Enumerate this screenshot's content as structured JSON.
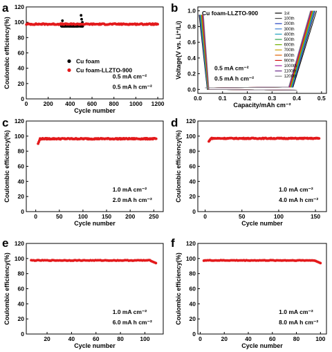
{
  "chart_data": [
    {
      "panel": "a",
      "type": "scatter",
      "xlabel": "Cycle number",
      "ylabel": "Coulombic efficiency(%)",
      "xlim": [
        0,
        1250
      ],
      "ylim": [
        0,
        120
      ],
      "xticks": [
        "0",
        "200",
        "400",
        "600",
        "800",
        "1000",
        "1200"
      ],
      "yticks": [
        "0",
        "20",
        "40",
        "60",
        "80",
        "100",
        "120"
      ],
      "legend_position": "bottom-right",
      "annotations": [
        "0.5 mA cm⁻²",
        "0.5 mA h cm⁻²"
      ],
      "series": [
        {
          "name": "Cu foam",
          "color": "#000000",
          "x_range": [
            320,
            515
          ],
          "mean": 95,
          "spikes": [
            [
              330,
              102
            ],
            [
              500,
              109
            ],
            [
              505,
              104
            ],
            [
              512,
              100
            ]
          ]
        },
        {
          "name": "Cu foam-LLZTO-900",
          "color": "#e31a1c",
          "x_range": [
            1,
            1200
          ],
          "mean": 97.5,
          "spread": 1.5
        }
      ]
    },
    {
      "panel": "b",
      "type": "line",
      "title": "Cu foam-LLZTO-900",
      "xlabel": "Capacity/mAh cm⁻²",
      "ylabel": "Voltage(V vs. Li⁺/Li)",
      "xlim": [
        0,
        0.52
      ],
      "ylim": [
        -0.05,
        1.05
      ],
      "xticks": [
        "0.0",
        "0.1",
        "0.2",
        "0.3",
        "0.4",
        "0.5"
      ],
      "yticks": [
        "0.0",
        "0.2",
        "0.4",
        "0.6",
        "0.8",
        "1.0"
      ],
      "legend_position": "top-right",
      "annotations": [
        "0.5 mA cm⁻²",
        "0.5 mA h cm⁻²"
      ],
      "series": [
        {
          "name": "1st",
          "color": "#000000",
          "charge_end": 0.48
        },
        {
          "name": "100th",
          "color": "#444444",
          "charge_end": 0.475
        },
        {
          "name": "200th",
          "color": "#1f3fbf",
          "charge_end": 0.472
        },
        {
          "name": "300th",
          "color": "#3a7fd0",
          "charge_end": 0.47
        },
        {
          "name": "400th",
          "color": "#20a0c0",
          "charge_end": 0.468
        },
        {
          "name": "500th",
          "color": "#2aa04a",
          "charge_end": 0.466
        },
        {
          "name": "600th",
          "color": "#70b000",
          "charge_end": 0.465
        },
        {
          "name": "700th",
          "color": "#c8a000",
          "charge_end": 0.463
        },
        {
          "name": "800th",
          "color": "#e06000",
          "charge_end": 0.462
        },
        {
          "name": "900th",
          "color": "#d01010",
          "charge_end": 0.46
        },
        {
          "name": "1000th",
          "color": "#a020a0",
          "charge_end": 0.458
        },
        {
          "name": "1100th",
          "color": "#6a2a8a",
          "charge_end": 0.456
        },
        {
          "name": "1200th",
          "color": "#888888",
          "charge_end": 0.455
        }
      ]
    },
    {
      "panel": "c",
      "type": "scatter",
      "xlabel": "Cycle number",
      "ylabel": "Coulombic efficiency(%)",
      "xlim": [
        -20,
        270
      ],
      "ylim": [
        0,
        120
      ],
      "xticks": [
        "0",
        "50",
        "100",
        "150",
        "200",
        "250"
      ],
      "yticks": [
        "0",
        "20",
        "40",
        "60",
        "80",
        "100",
        "120"
      ],
      "annotations": [
        "1.0 mA cm⁻²",
        "2.0 mA h cm⁻²"
      ],
      "series": [
        {
          "color": "#e31a1c",
          "x_range": [
            5,
            255
          ],
          "mean": 96.5,
          "spread": 1.5,
          "start_value": 90
        }
      ]
    },
    {
      "panel": "d",
      "type": "scatter",
      "xlabel": "Cycle number",
      "ylabel": "Coulombic efficiency(%)",
      "xlim": [
        -10,
        165
      ],
      "ylim": [
        0,
        120
      ],
      "xticks": [
        "0",
        "50",
        "100",
        "150"
      ],
      "yticks": [
        "0",
        "20",
        "40",
        "60",
        "80",
        "100",
        "120"
      ],
      "annotations": [
        "1.0 mA cm⁻²",
        "4.0 mA h cm⁻²"
      ],
      "series": [
        {
          "color": "#e31a1c",
          "x_range": [
            5,
            155
          ],
          "mean": 97,
          "spread": 1.2,
          "start_value": 93
        }
      ]
    },
    {
      "panel": "e",
      "type": "scatter",
      "xlabel": "Cycle number",
      "ylabel": "Coulombic efficiency(%)",
      "xlim": [
        3,
        115
      ],
      "ylim": [
        0,
        120
      ],
      "xticks": [
        "20",
        "40",
        "60",
        "80",
        "100"
      ],
      "yticks": [
        "0",
        "20",
        "40",
        "60",
        "80",
        "100",
        "120"
      ],
      "annotations": [
        "1.0 mA cm⁻²",
        "6.0 mA h cm⁻²"
      ],
      "series": [
        {
          "color": "#e31a1c",
          "x_range": [
            7,
            109
          ],
          "mean": 97.5,
          "spread": 0.8,
          "end_value": 94
        }
      ]
    },
    {
      "panel": "f",
      "type": "scatter",
      "xlabel": "Cycle number",
      "ylabel": "Coulombic efficiency(%)",
      "xlim": [
        -2,
        105
      ],
      "ylim": [
        0,
        120
      ],
      "xticks": [
        "0",
        "20",
        "40",
        "60",
        "80",
        "100"
      ],
      "yticks": [
        "0",
        "20",
        "40",
        "60",
        "80",
        "100",
        "120"
      ],
      "annotations": [
        "1.0 mA cm⁻²",
        "8.0 mA h cm⁻²"
      ],
      "series": [
        {
          "color": "#e31a1c",
          "x_range": [
            3,
            100
          ],
          "mean": 97.5,
          "spread": 0.8,
          "end_value": 94
        }
      ]
    }
  ]
}
